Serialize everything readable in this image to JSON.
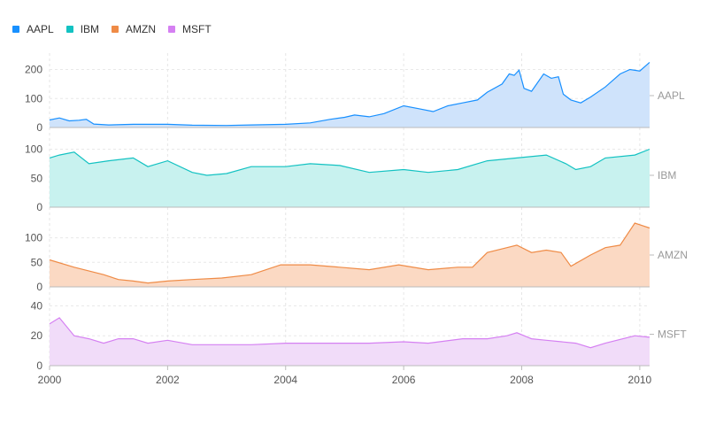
{
  "chart_data": {
    "type": "area",
    "x_range": [
      "2000-01-01",
      "2010-03-01"
    ],
    "x_ticks": [
      "2000",
      "2002",
      "2004",
      "2006",
      "2008",
      "2010"
    ],
    "grid": true,
    "legend_position": "top-left",
    "series": [
      {
        "name": "AAPL",
        "color": "#1890ff",
        "band_color": "#cfe3fb",
        "ylim": [
          0,
          220
        ],
        "y_ticks": [
          0,
          100,
          200
        ],
        "points": [
          [
            "2000-01-01",
            26
          ],
          [
            "2000-03-01",
            33
          ],
          [
            "2000-05-01",
            23
          ],
          [
            "2000-07-01",
            25
          ],
          [
            "2000-08-15",
            28
          ],
          [
            "2000-10-01",
            12
          ],
          [
            "2001-01-01",
            9
          ],
          [
            "2001-06-01",
            11
          ],
          [
            "2002-01-01",
            11
          ],
          [
            "2002-06-01",
            8
          ],
          [
            "2003-01-01",
            7
          ],
          [
            "2003-06-01",
            9
          ],
          [
            "2004-01-01",
            11
          ],
          [
            "2004-06-01",
            16
          ],
          [
            "2004-10-01",
            28
          ],
          [
            "2005-01-01",
            35
          ],
          [
            "2005-03-01",
            43
          ],
          [
            "2005-06-01",
            37
          ],
          [
            "2005-09-01",
            48
          ],
          [
            "2006-01-01",
            75
          ],
          [
            "2006-04-01",
            65
          ],
          [
            "2006-07-01",
            55
          ],
          [
            "2006-10-01",
            75
          ],
          [
            "2007-01-01",
            85
          ],
          [
            "2007-04-01",
            95
          ],
          [
            "2007-06-01",
            122
          ],
          [
            "2007-09-01",
            150
          ],
          [
            "2007-10-15",
            185
          ],
          [
            "2007-11-15",
            180
          ],
          [
            "2007-12-15",
            198
          ],
          [
            "2008-01-15",
            135
          ],
          [
            "2008-03-01",
            125
          ],
          [
            "2008-05-15",
            185
          ],
          [
            "2008-07-01",
            170
          ],
          [
            "2008-08-15",
            175
          ],
          [
            "2008-09-15",
            115
          ],
          [
            "2008-11-01",
            95
          ],
          [
            "2009-01-01",
            85
          ],
          [
            "2009-03-01",
            105
          ],
          [
            "2009-06-01",
            140
          ],
          [
            "2009-09-01",
            185
          ],
          [
            "2009-11-01",
            200
          ],
          [
            "2010-01-01",
            195
          ],
          [
            "2010-03-01",
            225
          ]
        ]
      },
      {
        "name": "IBM",
        "color": "#13c2c2",
        "band_color": "#c8f2ef",
        "ylim": [
          0,
          110
        ],
        "y_ticks": [
          0,
          50,
          100
        ],
        "points": [
          [
            "2000-01-01",
            85
          ],
          [
            "2000-03-01",
            90
          ],
          [
            "2000-06-01",
            95
          ],
          [
            "2000-09-01",
            75
          ],
          [
            "2001-01-01",
            80
          ],
          [
            "2001-06-01",
            85
          ],
          [
            "2001-09-01",
            70
          ],
          [
            "2002-01-01",
            80
          ],
          [
            "2002-06-01",
            60
          ],
          [
            "2002-09-01",
            55
          ],
          [
            "2003-01-01",
            58
          ],
          [
            "2003-06-01",
            70
          ],
          [
            "2004-01-01",
            70
          ],
          [
            "2004-06-01",
            75
          ],
          [
            "2004-12-01",
            72
          ],
          [
            "2005-06-01",
            60
          ],
          [
            "2006-01-01",
            65
          ],
          [
            "2006-06-01",
            60
          ],
          [
            "2006-12-01",
            65
          ],
          [
            "2007-06-01",
            80
          ],
          [
            "2007-12-01",
            85
          ],
          [
            "2008-06-01",
            90
          ],
          [
            "2008-10-01",
            75
          ],
          [
            "2008-12-01",
            65
          ],
          [
            "2009-03-01",
            70
          ],
          [
            "2009-06-01",
            85
          ],
          [
            "2009-12-01",
            90
          ],
          [
            "2010-03-01",
            100
          ]
        ]
      },
      {
        "name": "AMZN",
        "color": "#ef8b46",
        "band_color": "#fbd9c3",
        "ylim": [
          0,
          130
        ],
        "y_ticks": [
          0,
          50,
          100
        ],
        "points": [
          [
            "2000-01-01",
            55
          ],
          [
            "2000-06-01",
            40
          ],
          [
            "2000-12-01",
            25
          ],
          [
            "2001-03-01",
            15
          ],
          [
            "2001-06-01",
            12
          ],
          [
            "2001-09-01",
            8
          ],
          [
            "2002-01-01",
            12
          ],
          [
            "2002-06-01",
            15
          ],
          [
            "2002-12-01",
            18
          ],
          [
            "2003-06-01",
            25
          ],
          [
            "2003-12-01",
            45
          ],
          [
            "2004-06-01",
            45
          ],
          [
            "2004-12-01",
            40
          ],
          [
            "2005-06-01",
            35
          ],
          [
            "2005-12-01",
            45
          ],
          [
            "2006-06-01",
            35
          ],
          [
            "2006-12-01",
            40
          ],
          [
            "2007-03-01",
            40
          ],
          [
            "2007-06-01",
            70
          ],
          [
            "2007-10-01",
            80
          ],
          [
            "2007-12-01",
            85
          ],
          [
            "2008-03-01",
            70
          ],
          [
            "2008-06-01",
            75
          ],
          [
            "2008-09-01",
            70
          ],
          [
            "2008-11-01",
            42
          ],
          [
            "2009-03-01",
            65
          ],
          [
            "2009-06-01",
            80
          ],
          [
            "2009-09-01",
            85
          ],
          [
            "2009-12-01",
            130
          ],
          [
            "2010-03-01",
            120
          ]
        ]
      },
      {
        "name": "MSFT",
        "color": "#d580f2",
        "band_color": "#f1dcf9",
        "ylim": [
          0,
          42
        ],
        "y_ticks": [
          0,
          20,
          40
        ],
        "points": [
          [
            "2000-01-01",
            28
          ],
          [
            "2000-03-01",
            32
          ],
          [
            "2000-06-01",
            20
          ],
          [
            "2000-09-01",
            18
          ],
          [
            "2000-12-01",
            15
          ],
          [
            "2001-03-01",
            18
          ],
          [
            "2001-06-01",
            18
          ],
          [
            "2001-09-01",
            15
          ],
          [
            "2002-01-01",
            17
          ],
          [
            "2002-06-01",
            14
          ],
          [
            "2002-12-01",
            14
          ],
          [
            "2003-06-01",
            14
          ],
          [
            "2004-01-01",
            15
          ],
          [
            "2004-06-01",
            15
          ],
          [
            "2005-01-01",
            15
          ],
          [
            "2005-06-01",
            15
          ],
          [
            "2006-01-01",
            16
          ],
          [
            "2006-06-01",
            15
          ],
          [
            "2007-01-01",
            18
          ],
          [
            "2007-06-01",
            18
          ],
          [
            "2007-10-01",
            20
          ],
          [
            "2007-12-01",
            22
          ],
          [
            "2008-03-01",
            18
          ],
          [
            "2008-06-01",
            17
          ],
          [
            "2008-12-01",
            15
          ],
          [
            "2009-03-01",
            12
          ],
          [
            "2009-06-01",
            15
          ],
          [
            "2009-12-01",
            20
          ],
          [
            "2010-03-01",
            19
          ]
        ]
      }
    ]
  }
}
